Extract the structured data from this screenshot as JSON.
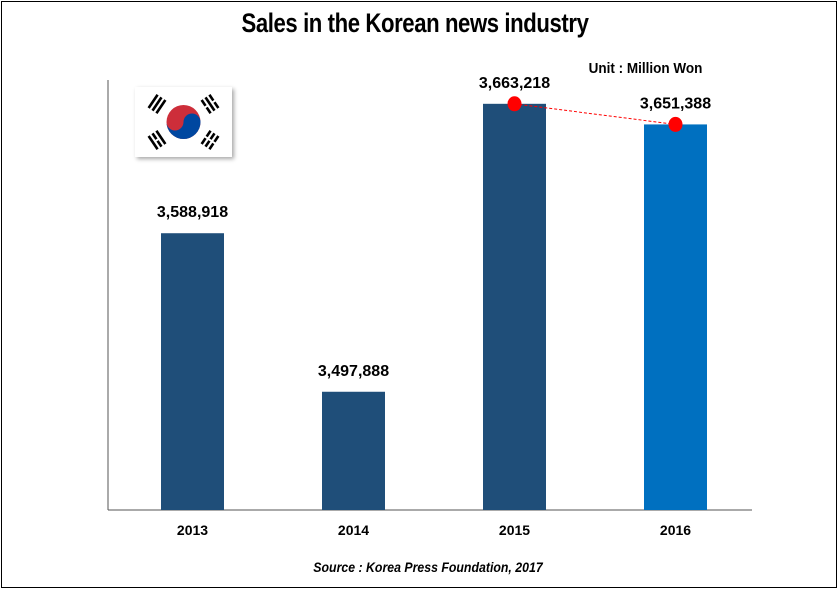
{
  "header": {
    "title": "Sales in the Korean news industry",
    "unit": "Unit : Million Won"
  },
  "footer": {
    "source": "Source : Korea Press Foundation, 2017"
  },
  "flag": {
    "icon": "south-korea-flag-icon"
  },
  "colors": {
    "bar": "#1f4e79",
    "highlight_bar": "#0070c0",
    "marker": "#ff0000",
    "trend_line": "#ff0000",
    "axis": "#555555"
  },
  "chart_data": {
    "type": "bar",
    "title": "Sales in the Korean news industry",
    "xlabel": "",
    "ylabel": "",
    "categories": [
      "2013",
      "2014",
      "2015",
      "2016"
    ],
    "values": [
      3588918,
      3497888,
      3663218,
      3651388
    ],
    "data_labels": [
      "3,588,918",
      "3,497,888",
      "3,663,218",
      "3,651,388"
    ],
    "highlighted_category": "2016",
    "trend_markers": {
      "categories": [
        "2015",
        "2016"
      ],
      "style": "red dots joined by dashed line"
    },
    "ylim": [
      3430000,
      3670000
    ],
    "grid": false,
    "legend": "none"
  }
}
